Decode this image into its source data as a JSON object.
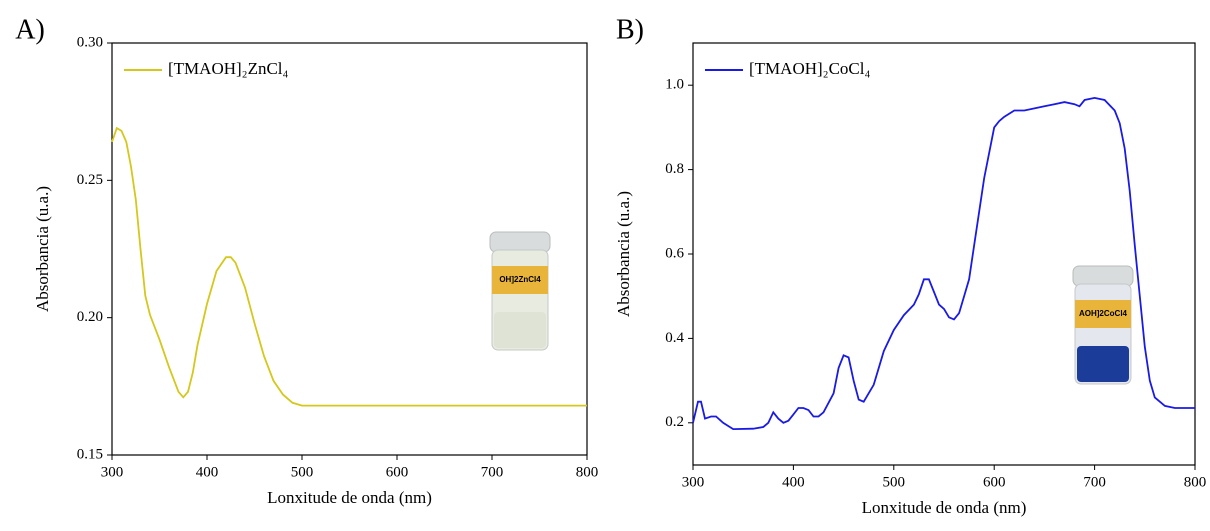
{
  "chart_data": [
    {
      "type": "line",
      "panel_label": "A)",
      "xlabel": "Lonxitude de onda (nm)",
      "ylabel": "Absorbancia (u.a.)",
      "xlim": [
        300,
        800
      ],
      "ylim": [
        0.15,
        0.3
      ],
      "xticks": [
        300,
        400,
        500,
        600,
        700,
        800
      ],
      "yticks": [
        0.15,
        {
          "value": 0.2,
          "label": "0.20"
        },
        0.25,
        {
          "value": 0.3,
          "label": "0.30"
        }
      ],
      "legend": "upper left",
      "inset_label": "OH]2ZnCl4",
      "x": [
        300,
        305,
        310,
        315,
        320,
        325,
        330,
        335,
        340,
        350,
        360,
        370,
        375,
        380,
        385,
        390,
        400,
        410,
        420,
        425,
        430,
        440,
        450,
        460,
        470,
        480,
        490,
        500,
        600,
        800
      ],
      "series": [
        {
          "name": "[TMAOH]₂ZnCl₄",
          "color": "#d4c81c",
          "values": [
            0.264,
            0.269,
            0.268,
            0.264,
            0.255,
            0.243,
            0.225,
            0.208,
            0.201,
            0.192,
            0.182,
            0.173,
            0.171,
            0.173,
            0.18,
            0.19,
            0.205,
            0.217,
            0.222,
            0.222,
            0.22,
            0.211,
            0.198,
            0.186,
            0.177,
            0.172,
            0.169,
            0.168,
            0.168,
            0.168
          ]
        }
      ]
    },
    {
      "type": "line",
      "panel_label": "B)",
      "xlabel": "Lonxitude de onda (nm)",
      "ylabel": "Absorbancia (u.a.)",
      "xlim": [
        300,
        800
      ],
      "ylim": [
        0.1,
        1.1
      ],
      "xticks": [
        300,
        400,
        500,
        600,
        700,
        800
      ],
      "yticks": [
        0.2,
        0.4,
        0.6,
        0.8,
        {
          "value": 1.0,
          "label": "1.0"
        }
      ],
      "legend": "upper left",
      "inset_label": "AOH]2CoCl4",
      "x": [
        300,
        305,
        308,
        312,
        318,
        323,
        330,
        340,
        360,
        370,
        375,
        380,
        385,
        390,
        395,
        400,
        405,
        410,
        415,
        420,
        425,
        430,
        440,
        445,
        450,
        455,
        460,
        465,
        470,
        480,
        490,
        500,
        510,
        520,
        525,
        530,
        535,
        540,
        545,
        550,
        555,
        560,
        565,
        570,
        575,
        580,
        590,
        600,
        605,
        610,
        620,
        630,
        640,
        650,
        660,
        670,
        680,
        685,
        690,
        700,
        710,
        720,
        725,
        730,
        735,
        740,
        745,
        750,
        755,
        760,
        770,
        780,
        800
      ],
      "series": [
        {
          "name": "[TMAOH]₂CoCl₄",
          "color": "#1a1ae6",
          "values": [
            0.2,
            0.25,
            0.25,
            0.21,
            0.215,
            0.215,
            0.2,
            0.185,
            0.186,
            0.19,
            0.2,
            0.225,
            0.21,
            0.2,
            0.205,
            0.22,
            0.235,
            0.235,
            0.23,
            0.215,
            0.215,
            0.225,
            0.27,
            0.33,
            0.36,
            0.355,
            0.3,
            0.255,
            0.25,
            0.29,
            0.37,
            0.42,
            0.455,
            0.48,
            0.505,
            0.54,
            0.54,
            0.51,
            0.48,
            0.47,
            0.45,
            0.445,
            0.46,
            0.5,
            0.54,
            0.62,
            0.78,
            0.9,
            0.915,
            0.925,
            0.94,
            0.94,
            0.945,
            0.95,
            0.955,
            0.96,
            0.955,
            0.95,
            0.965,
            0.97,
            0.965,
            0.94,
            0.91,
            0.85,
            0.75,
            0.62,
            0.5,
            0.38,
            0.3,
            0.26,
            0.24,
            0.235,
            0.235
          ]
        }
      ]
    }
  ]
}
